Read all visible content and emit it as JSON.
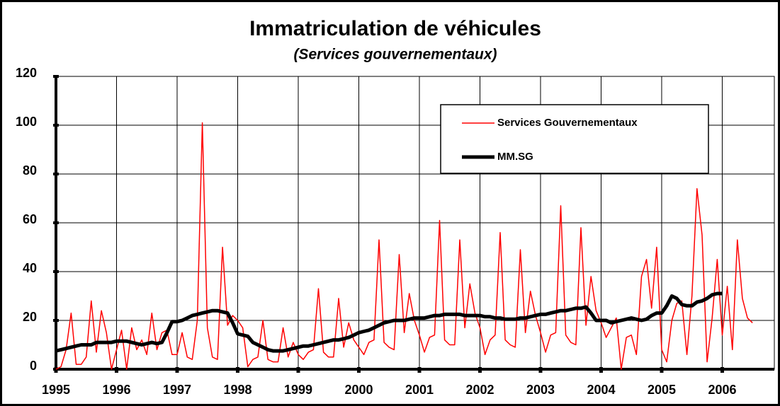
{
  "chart_data": {
    "type": "line",
    "title": "Immatriculation de véhicules",
    "subtitle": "(Services gouvernementaux)",
    "x": [
      1995,
      1995.083,
      1995.167,
      1995.25,
      1995.333,
      1995.417,
      1995.5,
      1995.583,
      1995.667,
      1995.75,
      1995.833,
      1995.917,
      1996,
      1996.083,
      1996.167,
      1996.25,
      1996.333,
      1996.417,
      1996.5,
      1996.583,
      1996.667,
      1996.75,
      1996.833,
      1996.917,
      1997,
      1997.083,
      1997.167,
      1997.25,
      1997.333,
      1997.417,
      1997.5,
      1997.583,
      1997.667,
      1997.75,
      1997.833,
      1997.917,
      1998,
      1998.083,
      1998.167,
      1998.25,
      1998.333,
      1998.417,
      1998.5,
      1998.583,
      1998.667,
      1998.75,
      1998.833,
      1998.917,
      1999,
      1999.083,
      1999.167,
      1999.25,
      1999.333,
      1999.417,
      1999.5,
      1999.583,
      1999.667,
      1999.75,
      1999.833,
      1999.917,
      2000,
      2000.083,
      2000.167,
      2000.25,
      2000.333,
      2000.417,
      2000.5,
      2000.583,
      2000.667,
      2000.75,
      2000.833,
      2000.917,
      2001,
      2001.083,
      2001.167,
      2001.25,
      2001.333,
      2001.417,
      2001.5,
      2001.583,
      2001.667,
      2001.75,
      2001.833,
      2001.917,
      2002,
      2002.083,
      2002.167,
      2002.25,
      2002.333,
      2002.417,
      2002.5,
      2002.583,
      2002.667,
      2002.75,
      2002.833,
      2002.917,
      2003,
      2003.083,
      2003.167,
      2003.25,
      2003.333,
      2003.417,
      2003.5,
      2003.583,
      2003.667,
      2003.75,
      2003.833,
      2003.917,
      2004,
      2004.083,
      2004.167,
      2004.25,
      2004.333,
      2004.417,
      2004.5,
      2004.583,
      2004.667,
      2004.75,
      2004.833,
      2004.917,
      2005,
      2005.083,
      2005.167,
      2005.25,
      2005.333,
      2005.417,
      2005.5,
      2005.583,
      2005.667,
      2005.75,
      2005.833,
      2005.917,
      2006,
      2006.083,
      2006.167,
      2006.25,
      2006.333,
      2006.417,
      2006.5
    ],
    "series": [
      {
        "name": "Services Gouvernementaux",
        "color": "#ff0000",
        "width": 1.5,
        "values": [
          0,
          1,
          8,
          23,
          2,
          2,
          5,
          28,
          7,
          24,
          15,
          0,
          8,
          16,
          0,
          17,
          8,
          12,
          6,
          23,
          8,
          15,
          16,
          6,
          6,
          15,
          5,
          4,
          20,
          101,
          17,
          5,
          4,
          50,
          18,
          22,
          20,
          17,
          1,
          4,
          5,
          20,
          4,
          3,
          3,
          17,
          5,
          11,
          6,
          4,
          7,
          8,
          33,
          7,
          5,
          5,
          29,
          9,
          19,
          12,
          9,
          6,
          11,
          12,
          53,
          11,
          9,
          8,
          47,
          15,
          31,
          20,
          14,
          7,
          13,
          14,
          61,
          12,
          10,
          10,
          53,
          17,
          35,
          23,
          17,
          6,
          12,
          14,
          56,
          12,
          10,
          9,
          49,
          15,
          32,
          22,
          15,
          7,
          14,
          15,
          67,
          14,
          11,
          10,
          58,
          18,
          38,
          24,
          19,
          13,
          17,
          21,
          0,
          13,
          14,
          6,
          38,
          45,
          25,
          50,
          8,
          3,
          20,
          27,
          28,
          6,
          30,
          74,
          55,
          3,
          21,
          45,
          14,
          34,
          8,
          53,
          29,
          21,
          19
        ]
      },
      {
        "name": "MM.SG",
        "color": "#000000",
        "width": 5,
        "values": [
          7.5,
          8,
          8.5,
          9,
          9.5,
          10,
          10,
          10,
          11,
          11,
          11,
          11,
          11.5,
          11.5,
          11.5,
          11,
          10.5,
          10,
          10.5,
          11,
          10.5,
          11,
          15,
          19.5,
          19.5,
          20,
          21,
          22,
          22.5,
          23,
          23.5,
          24,
          24,
          23.5,
          23,
          19,
          14.5,
          14,
          13.5,
          11,
          10,
          9,
          8,
          7.5,
          7.5,
          7.5,
          8,
          8.5,
          9,
          9.5,
          9.5,
          10,
          10.5,
          11,
          11.5,
          12,
          12,
          12.5,
          13,
          14,
          15,
          15.5,
          16,
          17,
          18,
          19,
          19.5,
          20,
          20,
          20,
          20.5,
          21,
          21,
          21,
          21.5,
          22,
          22,
          22.5,
          22.5,
          22.5,
          22.5,
          22,
          22,
          22,
          22,
          21.5,
          21.5,
          21,
          21,
          20.5,
          20.5,
          20.5,
          21,
          21,
          21.5,
          22,
          22.5,
          22.5,
          23,
          23.5,
          24,
          24,
          24.5,
          25,
          25,
          25.5,
          23,
          20,
          20,
          20,
          19,
          19.5,
          20,
          20.5,
          21,
          20.5,
          20,
          20.5,
          22,
          23,
          23,
          26,
          30,
          29,
          26.5,
          26,
          26,
          27.5,
          28,
          29,
          30.5,
          31,
          31,
          null,
          null,
          null,
          null,
          null,
          null
        ]
      }
    ],
    "xlim": [
      1995,
      2006.86
    ],
    "xticks": [
      1995,
      1996,
      1997,
      1998,
      1999,
      2000,
      2001,
      2002,
      2003,
      2004,
      2005,
      2006
    ],
    "ylim": [
      0,
      120
    ],
    "yticks": [
      0,
      20,
      40,
      60,
      80,
      100,
      120
    ],
    "grid": true,
    "legend": "upper right"
  }
}
